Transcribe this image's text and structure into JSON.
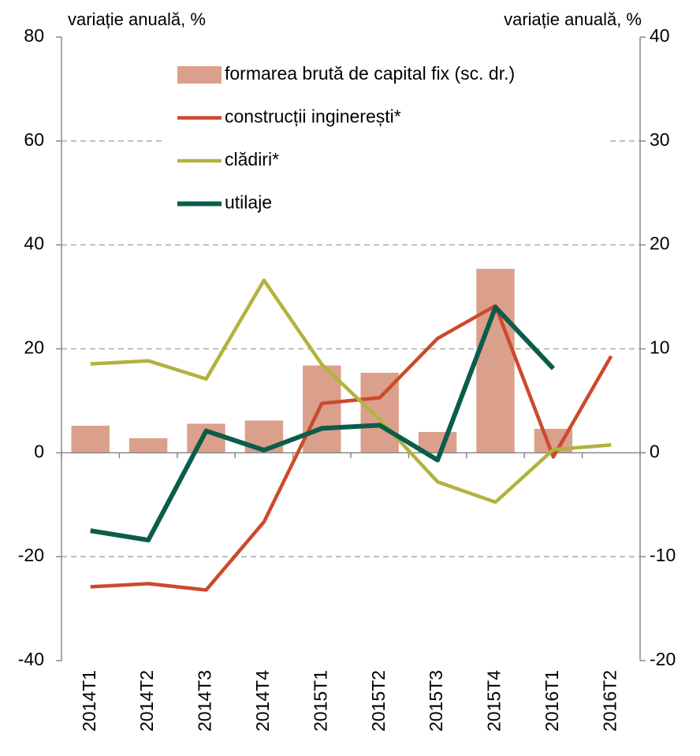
{
  "chart_data": {
    "type": "combo",
    "y_label": "variație anuală, %",
    "y2_label": "variație anuală, %",
    "categories": [
      "2014T1",
      "2014T2",
      "2014T3",
      "2014T4",
      "2015T1",
      "2015T2",
      "2015T3",
      "2015T4",
      "2016T1",
      "2016T2"
    ],
    "series": [
      {
        "name": "formarea brută de capital fix (sc. dr.)",
        "type": "bar",
        "axis": "y2",
        "color": "#dba08c",
        "values": [
          2.6,
          1.4,
          2.8,
          3.1,
          8.4,
          7.7,
          2.0,
          17.7,
          2.3,
          null
        ]
      },
      {
        "name": "construcții inginerești*",
        "type": "line",
        "color": "#cc4a2c",
        "values": [
          -25.8,
          -25.2,
          -26.4,
          -13.3,
          9.5,
          10.6,
          22.0,
          28.3,
          -0.8,
          18.6
        ]
      },
      {
        "name": "clădiri*",
        "type": "line",
        "color": "#b2b23e",
        "values": [
          17.1,
          17.7,
          14.2,
          33.2,
          17.0,
          6.4,
          -5.6,
          -9.5,
          0.6,
          1.5
        ]
      },
      {
        "name": "utilaje",
        "type": "line",
        "color": "#0c5c4a",
        "values": [
          -15.0,
          -16.8,
          4.2,
          0.5,
          4.7,
          5.3,
          -1.4,
          28.0,
          16.2,
          null
        ]
      }
    ],
    "ylim": [
      -40,
      80
    ],
    "yticks": [
      -40,
      -20,
      0,
      20,
      40,
      60,
      80
    ],
    "y2lim": [
      -20,
      40
    ],
    "y2ticks": [
      -20,
      -10,
      0,
      10,
      20,
      30,
      40
    ],
    "grid": true
  }
}
